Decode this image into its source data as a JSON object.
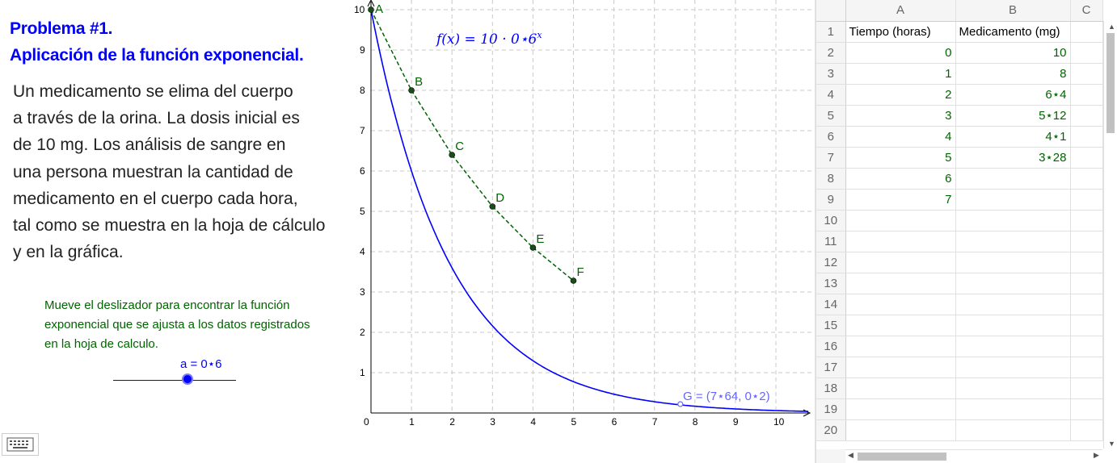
{
  "left": {
    "title_line1": "Problema #1.",
    "title_line2": "Aplicación de la función exponencial.",
    "problem_lines": [
      "Un medicamento se elima del cuerpo",
      "a través de la orina. La dosis inicial es",
      "de 10 mg. Los análisis de sangre en",
      "una persona muestran la cantidad de",
      "medicamento en el cuerpo cada hora,",
      "tal como se muestra en la hoja de cálculo",
      "y en la gráfica."
    ],
    "instruction_lines": [
      "Mueve el deslizador para encontrar la función",
      "exponencial que se ajusta a los datos registrados",
      "en la hoja de calculo."
    ],
    "slider_label": "a = 0⋆6",
    "slider_value": 0.6,
    "keyboard_icon": "keyboard-icon"
  },
  "graph": {
    "function_label_pre": "f(x)  =  10 · 0⋆6",
    "function_label_exp": "x",
    "point_g_label": "G = (7⋆64, 0⋆2)",
    "x_ticks": [
      "0",
      "1",
      "2",
      "3",
      "4",
      "5",
      "6",
      "7",
      "8",
      "9",
      "10"
    ],
    "y_ticks": [
      "1",
      "2",
      "3",
      "4",
      "5",
      "6",
      "7",
      "8",
      "9",
      "10"
    ],
    "colors": {
      "curve": "#0000ff",
      "points": "#006400",
      "label_g": "#6666ff",
      "grid": "#c8c8c8"
    }
  },
  "chart_data": {
    "type": "line",
    "xlim": [
      0,
      10.8
    ],
    "ylim": [
      0,
      10
    ],
    "grid": true,
    "function": {
      "base_value": 10,
      "decay": 0.6
    },
    "points": [
      {
        "name": "A",
        "x": 0,
        "y": 10
      },
      {
        "name": "B",
        "x": 1,
        "y": 8
      },
      {
        "name": "C",
        "x": 2,
        "y": 6.4
      },
      {
        "name": "D",
        "x": 3,
        "y": 5.12
      },
      {
        "name": "E",
        "x": 4,
        "y": 4.1
      },
      {
        "name": "F",
        "x": 5,
        "y": 3.28
      }
    ],
    "point_g": {
      "name": "G",
      "x": 7.64,
      "y": 0.2
    }
  },
  "sheet": {
    "col_headers": [
      "A",
      "B",
      "C"
    ],
    "row_numbers": [
      "1",
      "2",
      "3",
      "4",
      "5",
      "6",
      "7",
      "8",
      "9",
      "10",
      "11",
      "12",
      "13",
      "14",
      "15",
      "16",
      "17",
      "18",
      "19",
      "20"
    ],
    "rows": [
      [
        "Tiempo (horas)",
        "Medicamento (mg)"
      ],
      [
        "0",
        "10"
      ],
      [
        "1",
        "8"
      ],
      [
        "2",
        "6⋆4"
      ],
      [
        "3",
        "5⋆12"
      ],
      [
        "4",
        "4⋆1"
      ],
      [
        "5",
        "3⋆28"
      ],
      [
        "6",
        ""
      ],
      [
        "7",
        ""
      ],
      [
        "",
        ""
      ],
      [
        "",
        ""
      ],
      [
        "",
        ""
      ],
      [
        "",
        ""
      ],
      [
        "",
        ""
      ],
      [
        "",
        ""
      ],
      [
        "",
        ""
      ],
      [
        "",
        ""
      ],
      [
        "",
        ""
      ],
      [
        "",
        ""
      ],
      [
        "",
        ""
      ]
    ]
  }
}
